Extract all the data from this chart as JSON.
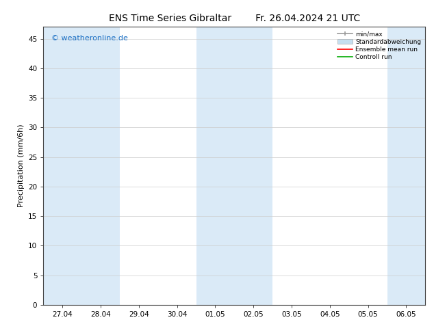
{
  "title_left": "ENS Time Series Gibraltar",
  "title_right": "Fr. 26.04.2024 21 UTC",
  "ylabel": "Precipitation (mm/6h)",
  "xlabel_ticks": [
    "27.04",
    "28.04",
    "29.04",
    "30.04",
    "01.05",
    "02.05",
    "03.05",
    "04.05",
    "05.05",
    "06.05"
  ],
  "xlim": [
    -0.5,
    9.5
  ],
  "ylim": [
    0,
    47
  ],
  "yticks": [
    0,
    5,
    10,
    15,
    20,
    25,
    30,
    35,
    40,
    45
  ],
  "background_color": "#ffffff",
  "plot_bg_color": "#ffffff",
  "shaded_band_color": "#daeaf7",
  "shaded_bands": [
    [
      -0.5,
      0.5
    ],
    [
      0.5,
      1.5
    ],
    [
      3.5,
      4.5
    ],
    [
      4.5,
      5.5
    ],
    [
      8.5,
      9.5
    ]
  ],
  "legend_entries": [
    {
      "label": "min/max",
      "type": "minmax",
      "color": "#999999"
    },
    {
      "label": "Standardabweichung",
      "type": "std",
      "color": "#c5dff0"
    },
    {
      "label": "Ensemble mean run",
      "type": "line",
      "color": "#ff0000"
    },
    {
      "label": "Controll run",
      "type": "line",
      "color": "#00aa00"
    }
  ],
  "watermark": "© weatheronline.de",
  "watermark_color": "#1a6fc4",
  "watermark_fontsize": 8,
  "title_fontsize": 10,
  "axis_fontsize": 7.5,
  "ylabel_fontsize": 8
}
